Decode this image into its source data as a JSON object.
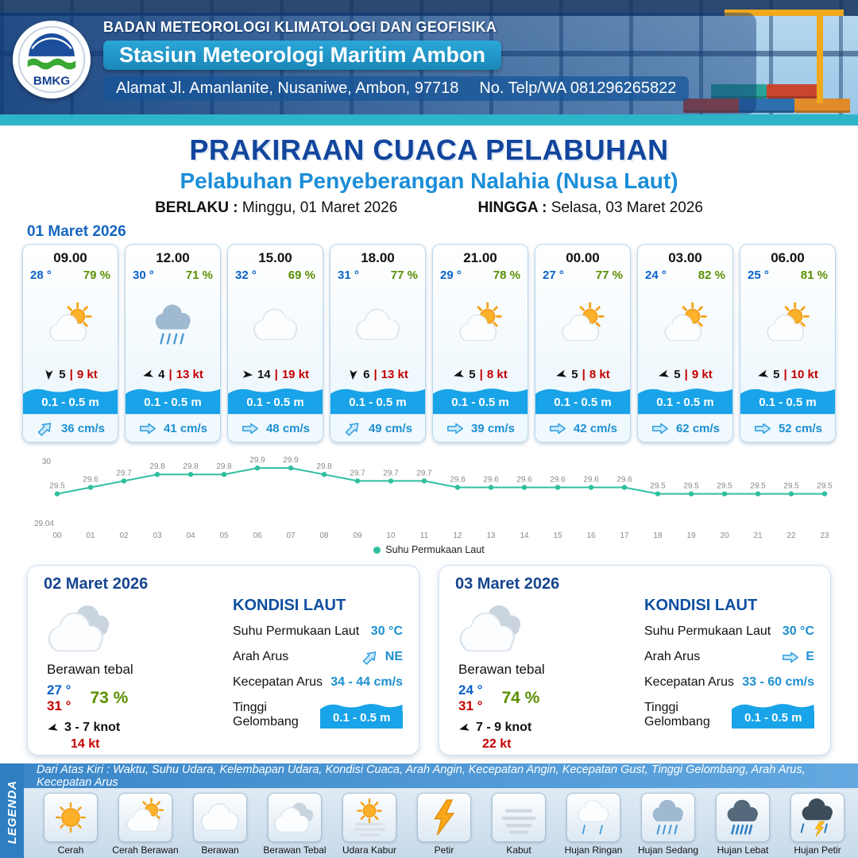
{
  "header": {
    "logo": "BMKG",
    "agency": "BADAN METEOROLOGI KLIMATOLOGI DAN GEOFISIKA",
    "station": "Stasiun Meteorologi Maritim Ambon",
    "address": "Alamat Jl. Amanlanite, Nusaniwe, Ambon, 97718",
    "phone": "No. Telp/WA  081296265822"
  },
  "title": {
    "main": "PRAKIRAAN CUACA PELABUHAN",
    "subtitle": "Pelabuhan Penyeberangan Nalahia (Nusa Laut)",
    "berlaku_label": "BERLAKU :",
    "berlaku_value": "Minggu, 01 Maret 2026",
    "hingga_label": "HINGGA :",
    "hingga_value": "Selasa, 03 Maret 2026"
  },
  "day1": {
    "date": "01 Maret 2026",
    "cards": [
      {
        "time": "09.00",
        "temp": "28 °",
        "hum": "79 %",
        "icon": "cerah-berawan",
        "wind_deg": 185,
        "wind": "5",
        "gust": "9 kt",
        "wave": "0.1 - 0.5 m",
        "cur_dir": "NE",
        "cur": "36 cm/s"
      },
      {
        "time": "12.00",
        "temp": "30 °",
        "hum": "71 %",
        "icon": "hujan-sedang",
        "wind_deg": 255,
        "wind": "4",
        "gust": "13 kt",
        "wave": "0.1 - 0.5 m",
        "cur_dir": "E",
        "cur": "41 cm/s"
      },
      {
        "time": "15.00",
        "temp": "32 °",
        "hum": "69 %",
        "icon": "berawan",
        "wind_deg": 95,
        "wind": "14",
        "gust": "19 kt",
        "wave": "0.1 - 0.5 m",
        "cur_dir": "E",
        "cur": "48 cm/s"
      },
      {
        "time": "18.00",
        "temp": "31 °",
        "hum": "77 %",
        "icon": "berawan",
        "wind_deg": 185,
        "wind": "6",
        "gust": "13 kt",
        "wave": "0.1 - 0.5 m",
        "cur_dir": "NE",
        "cur": "49 cm/s"
      },
      {
        "time": "21.00",
        "temp": "29 °",
        "hum": "78 %",
        "icon": "cerah-berawan",
        "wind_deg": 255,
        "wind": "5",
        "gust": "8 kt",
        "wave": "0.1 - 0.5 m",
        "cur_dir": "E",
        "cur": "39 cm/s"
      },
      {
        "time": "00.00",
        "temp": "27 °",
        "hum": "77 %",
        "icon": "cerah-berawan",
        "wind_deg": 255,
        "wind": "5",
        "gust": "8 kt",
        "wave": "0.1 - 0.5 m",
        "cur_dir": "E",
        "cur": "42 cm/s"
      },
      {
        "time": "03.00",
        "temp": "24 °",
        "hum": "82 %",
        "icon": "cerah-berawan",
        "wind_deg": 255,
        "wind": "5",
        "gust": "9 kt",
        "wave": "0.1 - 0.5 m",
        "cur_dir": "E",
        "cur": "62 cm/s"
      },
      {
        "time": "06.00",
        "temp": "25 °",
        "hum": "81 %",
        "icon": "cerah-berawan",
        "wind_deg": 255,
        "wind": "5",
        "gust": "10 kt",
        "wave": "0.1 - 0.5 m",
        "cur_dir": "E",
        "cur": "52 cm/s"
      }
    ]
  },
  "chart_data": {
    "type": "line",
    "series_name": "Suhu Permukaan Laut",
    "x": [
      "00",
      "01",
      "02",
      "03",
      "04",
      "05",
      "06",
      "07",
      "08",
      "09",
      "10",
      "11",
      "12",
      "13",
      "14",
      "15",
      "16",
      "17",
      "18",
      "19",
      "20",
      "21",
      "22",
      "23"
    ],
    "values": [
      29.5,
      29.6,
      29.7,
      29.8,
      29.8,
      29.8,
      29.9,
      29.9,
      29.8,
      29.7,
      29.7,
      29.7,
      29.6,
      29.6,
      29.6,
      29.6,
      29.6,
      29.6,
      29.5,
      29.5,
      29.5,
      29.5,
      29.5,
      29.5
    ],
    "ylim": [
      29.04,
      30
    ],
    "y_ticks": [
      "30",
      "29.04"
    ],
    "line_color": "#2fbfa0",
    "grid": false,
    "legend_position": "bottom"
  },
  "daily": [
    {
      "date": "02 Maret 2026",
      "icon": "berawan-tebal",
      "condition": "Berawan tebal",
      "temp_min": "27 °",
      "temp_max": "31 °",
      "hum": "73 %",
      "wind_deg": 255,
      "wind": "3 - 7 knot",
      "gust": "14 kt",
      "sea_title": "KONDISI LAUT",
      "sst_label": "Suhu Permukaan Laut",
      "sst": "30 °C",
      "arah_label": "Arah Arus",
      "arah": "NE",
      "kec_label": "Kecepatan Arus",
      "kec": "34 - 44 cm/s",
      "gel_label": "Tinggi Gelombang",
      "gel": "0.1 - 0.5 m"
    },
    {
      "date": "03 Maret 2026",
      "icon": "berawan-tebal",
      "condition": "Berawan tebal",
      "temp_min": "24 °",
      "temp_max": "31 °",
      "hum": "74 %",
      "wind_deg": 255,
      "wind": "7 - 9 knot",
      "gust": "22 kt",
      "sea_title": "KONDISI LAUT",
      "sst_label": "Suhu Permukaan Laut",
      "sst": "30 °C",
      "arah_label": "Arah Arus",
      "arah": "E",
      "kec_label": "Kecepatan Arus",
      "kec": "33 - 60 cm/s",
      "gel_label": "Tinggi Gelombang",
      "gel": "0.1 - 0.5 m"
    }
  ],
  "legend": {
    "note": "Dari Atas Kiri : Waktu, Suhu Udara, Kelembapan Udara, Kondisi Cuaca, Arah Angin, Kecepatan Angin, Kecepatan Gust, Tinggi Gelombang, Arah Arus, Kecepatan Arus",
    "title": "LEGENDA",
    "items": [
      {
        "label": "Cerah",
        "icon": "cerah"
      },
      {
        "label": "Cerah Berawan",
        "icon": "cerah-berawan"
      },
      {
        "label": "Berawan",
        "icon": "berawan"
      },
      {
        "label": "Berawan Tebal",
        "icon": "berawan-tebal"
      },
      {
        "label": "Udara Kabur",
        "icon": "udara-kabur"
      },
      {
        "label": "Petir",
        "icon": "petir"
      },
      {
        "label": "Kabut",
        "icon": "kabut"
      },
      {
        "label": "Hujan Ringan",
        "icon": "hujan-ringan"
      },
      {
        "label": "Hujan Sedang",
        "icon": "hujan-sedang"
      },
      {
        "label": "Hujan Lebat",
        "icon": "hujan-lebat"
      },
      {
        "label": "Hujan Petir",
        "icon": "hujan-petir"
      }
    ]
  },
  "colors": {
    "temp_blue": "#0a62c9",
    "humidity_green": "#5a8f00",
    "gust_red": "#c40000",
    "wave_blue": "#19a3e8",
    "title_blue": "#12459c",
    "subtitle_blue": "#1b8ed8",
    "sst_line": "#2fbfa0"
  }
}
